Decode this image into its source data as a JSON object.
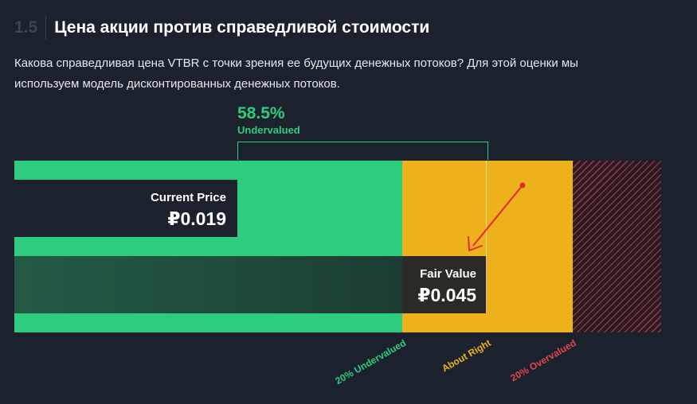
{
  "section": {
    "number": "1.5",
    "title": "Цена акции против справедливой стоимости",
    "description": "Какова справедливая цена VTBR с точки зрения ее будущих денежных потоков? Для этой оценки мы используем модель дисконтированных денежных потоков."
  },
  "valuation": {
    "percent": "58.5%",
    "percent_fraction": 0.585,
    "status": "Undervalued",
    "current_price_label": "Current Price",
    "current_price_value": "₽0.019",
    "fair_value_label": "Fair Value",
    "fair_value_value": "₽0.045"
  },
  "zones": {
    "undervalued": "20% Undervalued",
    "about_right": "About Right",
    "overvalued": "20% Overvalued"
  },
  "colors": {
    "green": "#2ecc7f",
    "yellow": "#edb11c",
    "red": "#e0464a",
    "annotation_arrow": "#e8262b",
    "background": "#1b222d"
  }
}
